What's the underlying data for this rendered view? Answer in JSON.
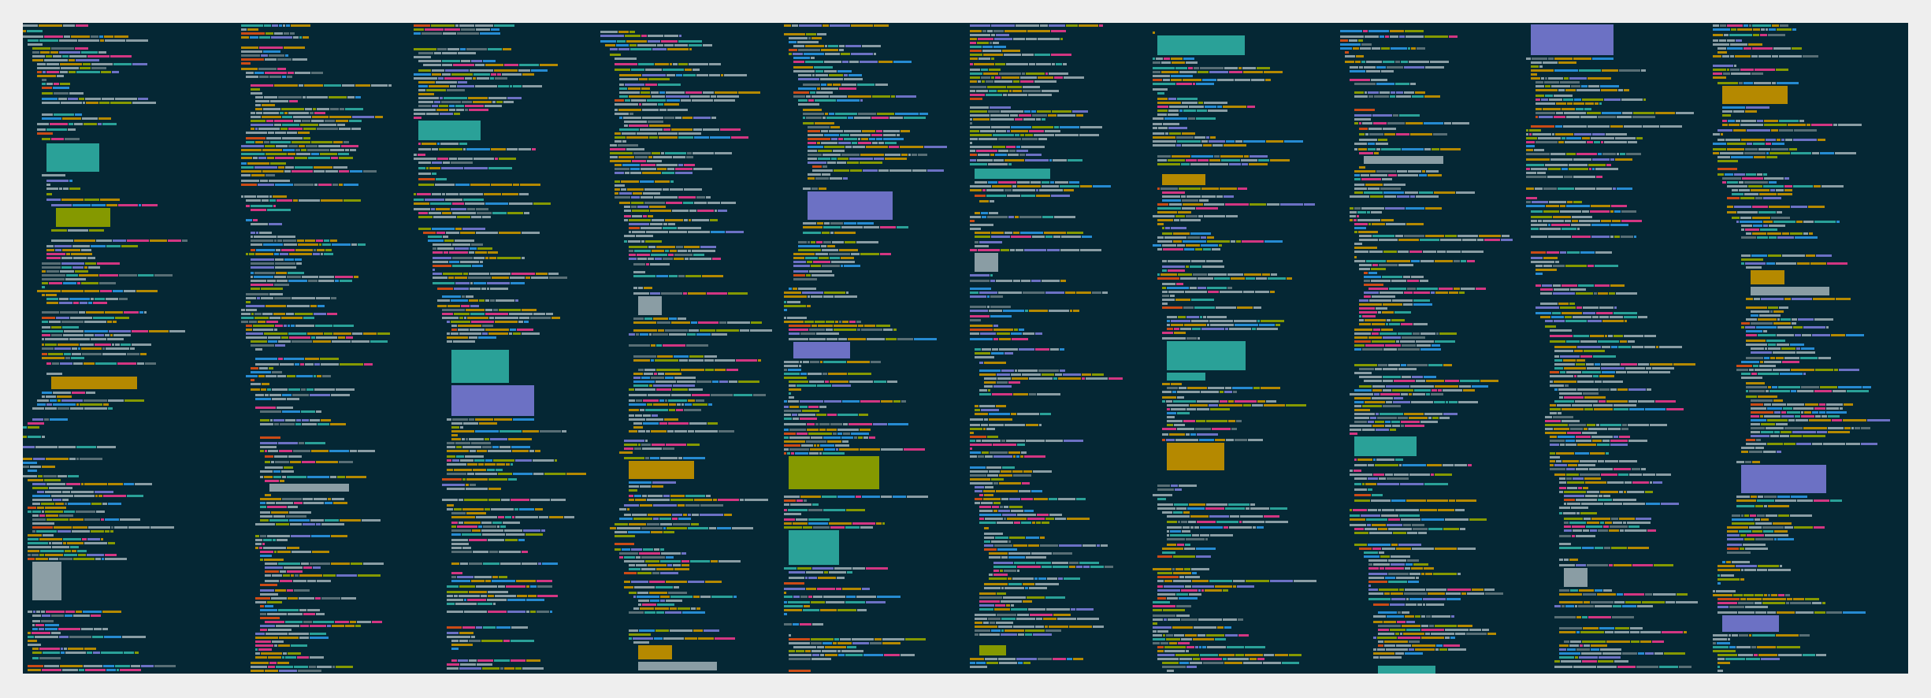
{
  "view": {
    "kind": "code-minimap-overview",
    "column_count": 10,
    "theme": {
      "background": "#052734",
      "page_background": "#eeeeee",
      "token_colors": {
        "text": "#8a9da4",
        "keyword": "#b58900",
        "type": "#859900",
        "string": "#2aa198",
        "function": "#268bd2",
        "constant": "#d33682",
        "number": "#6c71c4",
        "heading": "#cb4b16",
        "comment": "#586e75"
      }
    }
  }
}
